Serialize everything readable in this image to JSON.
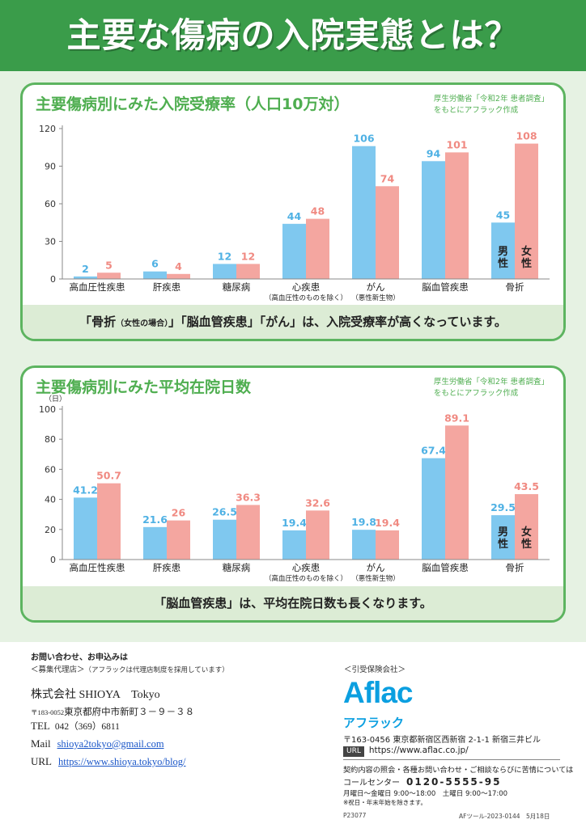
{
  "header": {
    "title": "主要な傷病の入院実態とは？"
  },
  "panel1": {
    "title": "主要傷病別にみた入院受療率（人口10万対）",
    "source_line1": "厚生労働省「令和2年 患者調査」",
    "source_line2": "をもとにアフラック作成",
    "footer_p1": "「骨折",
    "footer_small": "（女性の場合）",
    "footer_p2": "」「脳血管疾患」「がん」は、入院受療率が高くなっています。"
  },
  "panel2": {
    "title": "主要傷病別にみた平均在院日数",
    "source_line1": "厚生労働省「令和2年 患者調査」",
    "source_line2": "をもとにアフラック作成",
    "footer": "「脳血管疾患」は、平均在院日数も長くなります。"
  },
  "chart_data": [
    {
      "type": "bar",
      "title": "主要傷病別にみた入院受療率（人口10万対）",
      "categories": [
        "高血圧性疾患",
        "肝疾患",
        "糖尿病",
        "心疾患",
        "がん",
        "脳血管疾患",
        "骨折"
      ],
      "category_notes": [
        "",
        "",
        "",
        "（高血圧性のものを除く）",
        "（悪性新生物）",
        "",
        ""
      ],
      "series": [
        {
          "name": "男性",
          "values": [
            2,
            6,
            12,
            44,
            106,
            94,
            45
          ],
          "color": "#7fc8ef"
        },
        {
          "name": "女性",
          "values": [
            5,
            4,
            12,
            48,
            74,
            101,
            108
          ],
          "color": "#f4a6a0"
        }
      ],
      "yticks": [
        0,
        30,
        60,
        90,
        120
      ],
      "ylim": [
        0,
        120
      ],
      "ylabel": "",
      "label_colors": [
        "#4fb1e4",
        "#f08a82"
      ],
      "legend": "inside the 骨折 bars"
    },
    {
      "type": "bar",
      "title": "主要傷病別にみた平均在院日数",
      "categories": [
        "高血圧性疾患",
        "肝疾患",
        "糖尿病",
        "心疾患",
        "がん",
        "脳血管疾患",
        "骨折"
      ],
      "category_notes": [
        "",
        "",
        "",
        "（高血圧性のものを除く）",
        "（悪性新生物）",
        "",
        ""
      ],
      "series": [
        {
          "name": "男性",
          "values": [
            41.2,
            21.6,
            26.5,
            19.4,
            19.8,
            67.4,
            29.5
          ],
          "color": "#7fc8ef"
        },
        {
          "name": "女性",
          "values": [
            50.7,
            26.0,
            36.3,
            32.6,
            19.4,
            89.1,
            43.5
          ],
          "color": "#f4a6a0"
        }
      ],
      "yticks": [
        0,
        20,
        40,
        60,
        80,
        100
      ],
      "ylim": [
        0,
        100
      ],
      "ylabel": "（日）",
      "label_colors": [
        "#4fb1e4",
        "#f08a82"
      ],
      "legend": "inside the 骨折 bars"
    }
  ],
  "contact": {
    "heading": "お問い合わせ、お申込みは",
    "agency_label": "＜募集代理店＞",
    "agency_note": "（アフラックは代理店制度を採用しています）",
    "name": "株式会社 SHIOYA　Tokyo",
    "zip": "〒183-0052",
    "address": "東京都府中市新町３－９－３８",
    "tel_label": "TEL",
    "tel": "042（369）6811",
    "mail_label": "Mail",
    "mail": "shioya2tokyo@gmail.com",
    "url_label": "URL",
    "url": "https://www.shioya.tokyo/blog/"
  },
  "insurer": {
    "label": "＜引受保険会社＞",
    "logo": "Aflac",
    "kana": "アフラック",
    "address": "〒163-0456 東京都新宿区西新宿 2-1-1 新宿三井ビル",
    "url_badge": "URL",
    "url": "https://www.aflac.co.jp/",
    "inquiry_note": "契約内容の照会・各種お問い合わせ・ご相談ならびに苦情については",
    "call_center_label": "コールセンター",
    "call_center_number": "0120-5555-95",
    "hours": "月曜日～金曜日 9:00～18:00　土曜日 9:00～17:00",
    "holidays": "※祝日・年末年始を除きます。",
    "code_left": "P23077",
    "code_right": "AFツール-2023-0144　5月18日"
  }
}
